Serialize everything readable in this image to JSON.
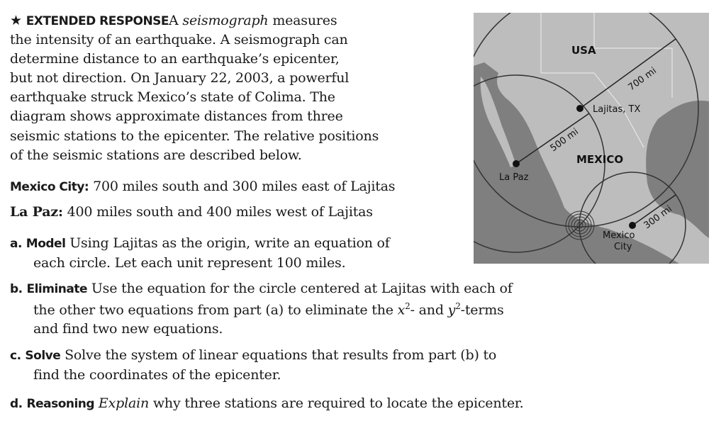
{
  "intro": {
    "star": "★",
    "label": "EXTENDED RESPONSE",
    "term": "seismograph",
    "lines": [
      [
        "A ",
        " measures"
      ],
      "the intensity of an earthquake. A seismograph can",
      "determine distance to an earthquake’s epicenter,",
      "but not direction. On January 22, 2003, a powerful",
      "earthquake struck Mexico’s state of Colima. The",
      "diagram shows approximate distances from three",
      "seismic stations to the epicenter. The relative positions",
      "of the seismic stations are described below."
    ]
  },
  "stations": [
    {
      "name": "Mexico City:",
      "text": " 700 miles south and 300 miles east of Lajitas"
    },
    {
      "name": "La Paz:",
      "text": " 400 miles south and 400 miles west of Lajitas"
    }
  ],
  "parts": {
    "a": {
      "letter": "a.",
      "label": "Model",
      "lines": [
        " Using Lajitas as the origin, write an equation of",
        "each circle. Let each unit represent 100 miles."
      ]
    },
    "b": {
      "letter": "b.",
      "label": "Eliminate",
      "lines": [
        " Use the equation for the circle centered at Lajitas with each of",
        "the other two equations from part (a) to eliminate the ",
        "and find two new equations."
      ],
      "x2": "x",
      "y2": "y",
      "sup": "2",
      "mid": "- and ",
      "end": "-terms"
    },
    "c": {
      "letter": "c.",
      "label": "Solve",
      "lines": [
        " Solve the system of linear equations that results from part (b) to",
        "find the coordinates of the epicenter."
      ]
    },
    "d": {
      "letter": "d.",
      "label": "Reasoning",
      "italic": "Explain",
      "lines": [
        " why three stations are required to locate the epicenter."
      ]
    }
  },
  "map": {
    "labels": {
      "usa": "USA",
      "mexico": "MEXICO",
      "lajitas": "Lajitas, TX",
      "lapaz": "La Paz",
      "mexico_city_1": "Mexico",
      "mexico_city_2": "City"
    },
    "distances": {
      "lajitas": "700 mi",
      "lapaz": "500 mi",
      "mexico_city": "300 mi"
    },
    "colors": {
      "land": "#bdbdbd",
      "water": "#7f7f7f",
      "circle": "#333333"
    }
  }
}
